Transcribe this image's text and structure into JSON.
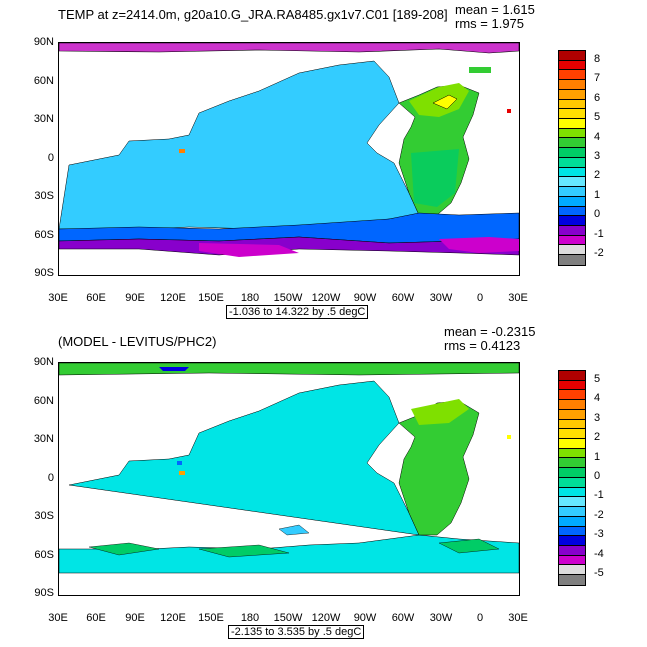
{
  "panels": [
    {
      "title": "TEMP at z=2414.0m, g20a10.G_JRA.RA8485.gx1v7.C01 [189-208]",
      "mean": "mean = 1.615",
      "rms": "rms = 1.975",
      "range": "-1.036 to 14.322 by .5 degC",
      "lat_labels": [
        "90N",
        "60N",
        "30N",
        "0",
        "30S",
        "60S",
        "90S"
      ],
      "lon_labels": [
        "30E",
        "60E",
        "90E",
        "120E",
        "150E",
        "180",
        "150W",
        "120W",
        "90W",
        "60W",
        "30W",
        "0",
        "30E"
      ],
      "colorbar_labels": [
        "8",
        "7",
        "6",
        "5",
        "4",
        "3",
        "2",
        "1",
        "0",
        "-1",
        "-2"
      ],
      "colorbar_colors": [
        "#b00000",
        "#e60000",
        "#ff4000",
        "#ff7f00",
        "#ffa000",
        "#ffc800",
        "#ffe000",
        "#ffff00",
        "#7fe000",
        "#33cc33",
        "#00cc66",
        "#00dd99",
        "#00e5e5",
        "#66e8ff",
        "#33ccff",
        "#00aaff",
        "#0066ff",
        "#0000e0",
        "#8800cc",
        "#cc00cc",
        "#dddddd",
        "#808080"
      ]
    },
    {
      "title": "(MODEL - LEVITUS/PHC2)",
      "mean": "mean = -0.2315",
      "rms": "rms = 0.4123",
      "range": "-2.135 to 3.535 by .5 degC",
      "lat_labels": [
        "90N",
        "60N",
        "30N",
        "0",
        "30S",
        "60S",
        "90S"
      ],
      "lon_labels": [
        "30E",
        "60E",
        "90E",
        "120E",
        "150E",
        "180",
        "150W",
        "120W",
        "90W",
        "60W",
        "30W",
        "0",
        "30E"
      ],
      "colorbar_labels": [
        "5",
        "4",
        "3",
        "2",
        "1",
        "0",
        "-1",
        "-2",
        "-3",
        "-4",
        "-5"
      ],
      "colorbar_colors": [
        "#b00000",
        "#e60000",
        "#ff4000",
        "#ff7f00",
        "#ffa000",
        "#ffc800",
        "#ffe000",
        "#ffff00",
        "#7fe000",
        "#33cc33",
        "#00cc66",
        "#00dd99",
        "#00e5e5",
        "#66e8ff",
        "#33ccff",
        "#00aaff",
        "#0066ff",
        "#0000e0",
        "#8800cc",
        "#cc00cc",
        "#dddddd",
        "#808080"
      ]
    }
  ]
}
